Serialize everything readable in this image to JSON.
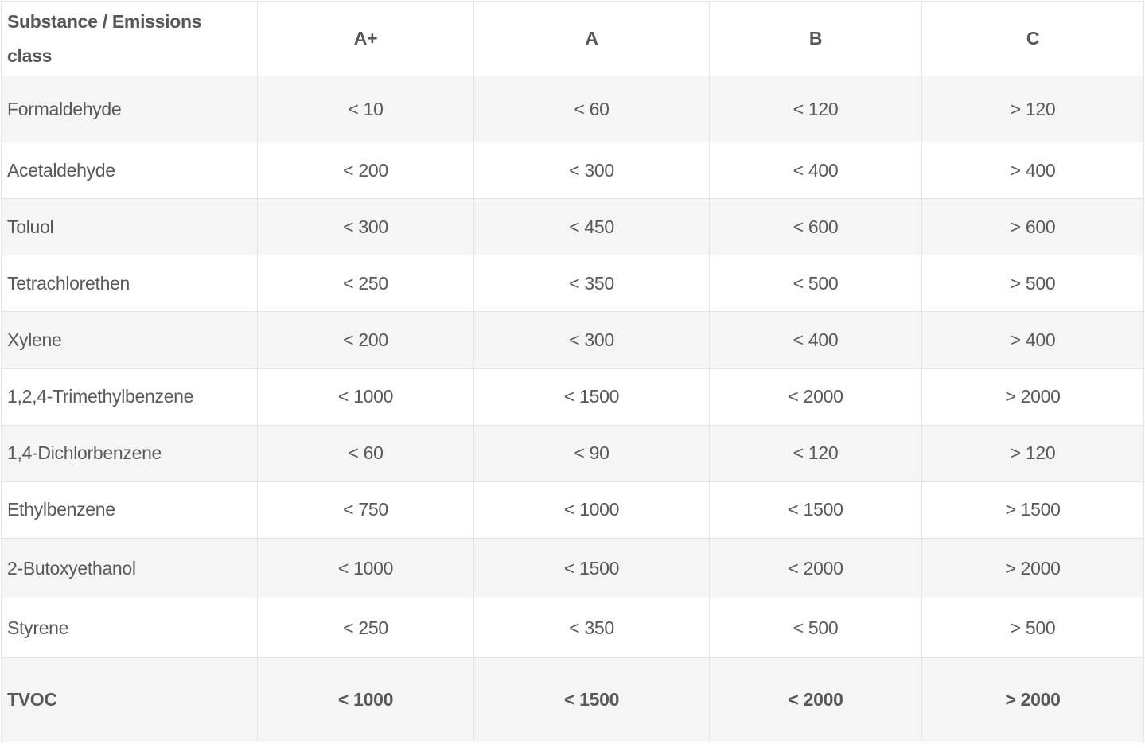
{
  "table": {
    "columns": [
      "Substance / Emissions class",
      "A+",
      "A",
      "B",
      "C"
    ],
    "rows": [
      {
        "substance": "Formaldehyde",
        "values": [
          "< 10",
          "< 60",
          "< 120",
          "> 120"
        ]
      },
      {
        "substance": "Acetaldehyde",
        "values": [
          "< 200",
          "< 300",
          "< 400",
          "> 400"
        ]
      },
      {
        "substance": "Toluol",
        "values": [
          "< 300",
          "< 450",
          "< 600",
          "> 600"
        ]
      },
      {
        "substance": "Tetrachlorethen",
        "values": [
          "< 250",
          "< 350",
          "< 500",
          "> 500"
        ]
      },
      {
        "substance": "Xylene",
        "values": [
          "< 200",
          "< 300",
          "< 400",
          "> 400"
        ]
      },
      {
        "substance": "1,2,4-Trimethylbenzene",
        "values": [
          "< 1000",
          "< 1500",
          "< 2000",
          "> 2000"
        ]
      },
      {
        "substance": "1,4-Dichlorbenzene",
        "values": [
          "< 60",
          "< 90",
          "< 120",
          "> 120"
        ]
      },
      {
        "substance": "Ethylbenzene",
        "values": [
          "< 750",
          "< 1000",
          "< 1500",
          "> 1500"
        ]
      },
      {
        "substance": "2-Butoxyethanol",
        "values": [
          "< 1000",
          "< 1500",
          "< 2000",
          "> 2000"
        ]
      },
      {
        "substance": "Styrene",
        "values": [
          "< 250",
          "< 350",
          "< 500",
          "> 500"
        ]
      },
      {
        "substance": "TVOC",
        "values": [
          "< 1000",
          "< 1500",
          "< 2000",
          "> 2000"
        ]
      }
    ]
  },
  "colors": {
    "text": "#58585b",
    "row_stripe": "#f5f5f5",
    "border": "#e4e4e4",
    "background": "#ffffff"
  },
  "chart_data": {
    "type": "table",
    "title": "Substance / Emissions class limits",
    "columns": [
      "Substance / Emissions class",
      "A+",
      "A",
      "B",
      "C"
    ],
    "rows": [
      [
        "Formaldehyde",
        "< 10",
        "< 60",
        "< 120",
        "> 120"
      ],
      [
        "Acetaldehyde",
        "< 200",
        "< 300",
        "< 400",
        "> 400"
      ],
      [
        "Toluol",
        "< 300",
        "< 450",
        "< 600",
        "> 600"
      ],
      [
        "Tetrachlorethen",
        "< 250",
        "< 350",
        "< 500",
        "> 500"
      ],
      [
        "Xylene",
        "< 200",
        "< 300",
        "< 400",
        "> 400"
      ],
      [
        "1,2,4-Trimethylbenzene",
        "< 1000",
        "< 1500",
        "< 2000",
        "> 2000"
      ],
      [
        "1,4-Dichlorbenzene",
        "< 60",
        "< 90",
        "< 120",
        "> 120"
      ],
      [
        "Ethylbenzene",
        "< 750",
        "< 1000",
        "< 1500",
        "> 1500"
      ],
      [
        "2-Butoxyethanol",
        "< 1000",
        "< 1500",
        "< 2000",
        "> 2000"
      ],
      [
        "Styrene",
        "< 250",
        "< 350",
        "< 500",
        "> 500"
      ],
      [
        "TVOC",
        "< 1000",
        "< 1500",
        "< 2000",
        "> 2000"
      ]
    ],
    "layout": {
      "striped_rows": "odd",
      "footer_row_bold": "TVOC",
      "header_bold": true
    }
  }
}
